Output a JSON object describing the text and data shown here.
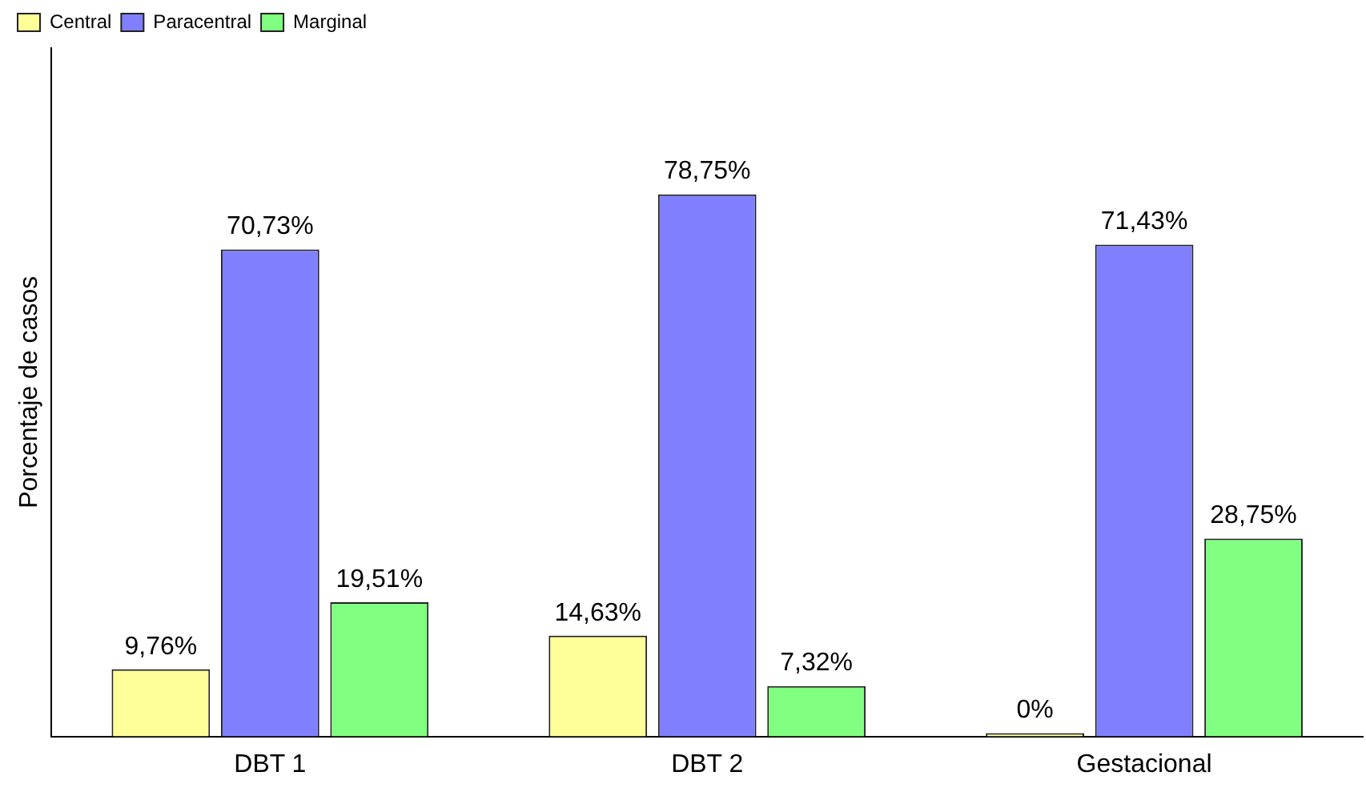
{
  "chart_data": {
    "type": "bar",
    "ylabel": "Porcentaje de casos",
    "categories": [
      "DBT 1",
      "DBT 2",
      "Gestacional"
    ],
    "series": [
      {
        "name": "Central",
        "color": "#ffff99",
        "values": [
          9.76,
          14.63,
          0
        ],
        "value_labels": [
          "9,76%",
          "14,63%",
          "0%"
        ]
      },
      {
        "name": "Paracentral",
        "color": "#8080ff",
        "values": [
          70.73,
          78.75,
          71.43
        ],
        "value_labels": [
          "70,73%",
          "78,75%",
          "71,43%"
        ]
      },
      {
        "name": "Marginal",
        "color": "#80ff80",
        "values": [
          19.51,
          7.32,
          28.75
        ],
        "value_labels": [
          "19,51%",
          "7,32%",
          "28,75%"
        ]
      }
    ],
    "ylim": [
      0,
      100
    ],
    "tick_labels": "x",
    "legend": "top left",
    "grid": false
  }
}
